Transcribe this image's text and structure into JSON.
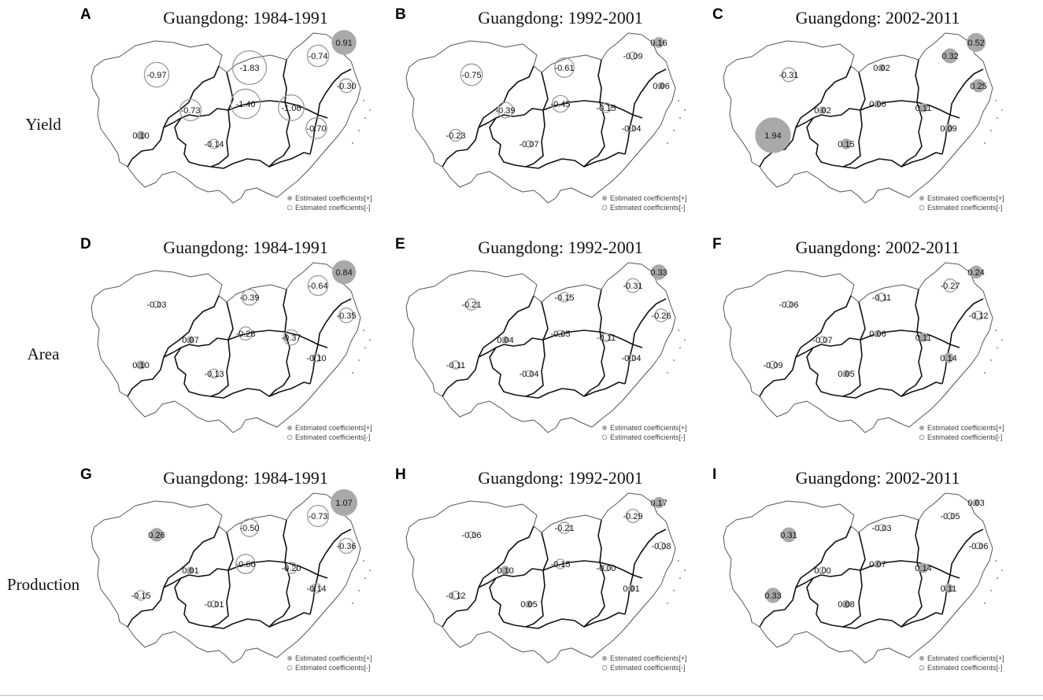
{
  "rows": [
    {
      "label": "Yield",
      "panels": [
        "A",
        "B",
        "C"
      ]
    },
    {
      "label": "Area",
      "panels": [
        "D",
        "E",
        "F"
      ]
    },
    {
      "label": "Production",
      "panels": [
        "G",
        "H",
        "I"
      ]
    }
  ],
  "legend": {
    "positive": "Estimated coefficients[+]",
    "negative": "Estimated coefficients[-]"
  },
  "colors": {
    "positive_fill": "#a9a9a9",
    "negative_stroke": "#9a9a9a",
    "border_inner": "#111111",
    "border_outer": "#555555"
  },
  "panels": [
    {
      "letter": "A",
      "title": "Guangdong: 1984-1991",
      "values": [
        -0.97,
        -1.83,
        -0.74,
        0.91,
        -0.3,
        -0.73,
        -1.4,
        -1.06,
        -0.7,
        0.1,
        -0.14
      ]
    },
    {
      "letter": "B",
      "title": "Guangdong: 1992-2001",
      "values": [
        -0.75,
        -0.61,
        -0.09,
        0.16,
        0.06,
        -0.39,
        -0.45,
        -0.15,
        -0.04,
        -0.23,
        -0.07
      ]
    },
    {
      "letter": "C",
      "title": "Guangdong: 2002-2011",
      "values": [
        -0.31,
        0.02,
        0.32,
        0.52,
        0.25,
        0.02,
        0.06,
        0.11,
        0.09,
        1.94,
        0.15
      ]
    },
    {
      "letter": "D",
      "title": "Guangdong: 1984-1991",
      "values": [
        -0.03,
        -0.39,
        -0.64,
        0.84,
        -0.35,
        0.07,
        -0.28,
        -0.37,
        -0.1,
        0.1,
        -0.13
      ]
    },
    {
      "letter": "E",
      "title": "Guangdong: 1992-2001",
      "values": [
        -0.21,
        -0.15,
        -0.31,
        0.33,
        -0.26,
        0.04,
        -0.05,
        -0.11,
        -0.04,
        -0.11,
        -0.04
      ]
    },
    {
      "letter": "F",
      "title": "Guangdong: 2002-2011",
      "values": [
        -0.06,
        -0.11,
        -0.27,
        0.24,
        -0.12,
        -0.07,
        0.06,
        0.11,
        0.14,
        -0.09,
        0.05
      ]
    },
    {
      "letter": "G",
      "title": "Guangdong: 1984-1991",
      "values": [
        0.26,
        -0.5,
        -0.73,
        1.07,
        -0.36,
        0.01,
        -0.6,
        -0.2,
        -0.14,
        -0.15,
        -0.01
      ]
    },
    {
      "letter": "H",
      "title": "Guangdong: 1992-2001",
      "values": [
        -0.06,
        -0.21,
        -0.29,
        0.17,
        -0.08,
        0.1,
        -0.15,
        -0.0,
        0.01,
        -0.12,
        0.05
      ]
    },
    {
      "letter": "I",
      "title": "Guangdong: 2002-2011",
      "values": [
        0.31,
        -0.03,
        -0.05,
        0.03,
        -0.06,
        0.0,
        0.07,
        0.14,
        0.11,
        0.33,
        0.08
      ]
    }
  ],
  "labels": {
    "A": [
      "-0.97",
      "-1.83",
      "-0.74",
      "0.91",
      "-0.30",
      "-0.73",
      "-1.40",
      "-1.06",
      "-0.70",
      "0.10",
      "-0.14"
    ],
    "B": [
      "-0.75",
      "-0.61",
      "-0.09",
      "0.16",
      "0.06",
      "-0.39",
      "-0.45",
      "-0.15",
      "-0.04",
      "-0.23",
      "-0.07"
    ],
    "C": [
      "-0.31",
      "0.02",
      "0.32",
      "0.52",
      "0.25",
      "0.02",
      "0.06",
      "0.11",
      "0.09",
      "1.94",
      "0.15"
    ],
    "D": [
      "-0.03",
      "-0.39",
      "-0.64",
      "0.84",
      "-0.35",
      "0.07",
      "-0.28",
      "-0.37",
      "-0.10",
      "0.10",
      "-0.13"
    ],
    "E": [
      "-0.21",
      "-0.15",
      "-0.31",
      "0.33",
      "-0.26",
      "0.04",
      "-0.05",
      "-0.11",
      "-0.04",
      "-0.11",
      "-0.04"
    ],
    "F": [
      "-0.06",
      "-0.11",
      "-0.27",
      "0.24",
      "-0.12",
      "-0.07",
      "0.06",
      "0.11",
      "0.14",
      "-0.09",
      "0.05"
    ],
    "G": [
      "0.26",
      "-0.50",
      "-0.73",
      "1.07",
      "-0.36",
      "0.01",
      "-0.60",
      "-0.20",
      "-0.14",
      "-0.15",
      "-0.01"
    ],
    "H": [
      "-0.06",
      "-0.21",
      "-0.29",
      "0.17",
      "-0.08",
      "0.10",
      "-0.15",
      "-0.00",
      "0.01",
      "-0.12",
      "0.05"
    ],
    "I": [
      "0.31",
      "-0.03",
      "-0.05",
      "0.03",
      "-0.06",
      "0.00",
      "0.07",
      "0.14",
      "0.11",
      "0.33",
      "0.08"
    ]
  }
}
